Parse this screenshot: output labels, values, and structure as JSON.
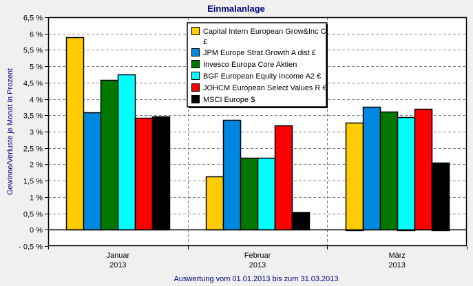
{
  "chart_data": {
    "type": "bar",
    "title": "Einmalanlage",
    "xlabel": "Auswertung vom 01.01.2013 bis zum 31.03.2013",
    "ylabel": "Gewinne/Verluste je Monat in Prozent",
    "ylim": [
      -0.5,
      6.5
    ],
    "yticks": [
      -0.5,
      0,
      0.5,
      1,
      1.5,
      2,
      2.5,
      3,
      3.5,
      4,
      4.5,
      5,
      5.5,
      6,
      6.5
    ],
    "ytick_labels": [
      "- 0,5 %",
      "0 %",
      "0,5 %",
      "1 %",
      "1,5 %",
      "2 %",
      "2,5 %",
      "3 %",
      "3,5 %",
      "4 %",
      "4,5 %",
      "5 %",
      "5,5 %",
      "6 %",
      "6,5 %"
    ],
    "grid": true,
    "legend_position": "top-center",
    "categories": [
      {
        "month": "Januar",
        "year": "2013"
      },
      {
        "month": "Februar",
        "year": "2013"
      },
      {
        "month": "März",
        "year": "2013"
      }
    ],
    "series": [
      {
        "name": "Capital Intern European Grow&Inc C £",
        "legend_lines": [
          "Capital Intern European Grow&Inc C",
          "£"
        ],
        "color": "#ffcc00",
        "values": [
          5.88,
          1.63,
          3.28
        ]
      },
      {
        "name": "JPM Europe Strat.Growth A dist £",
        "legend_lines": [
          "JPM Europe Strat.Growth A dist £"
        ],
        "color": "#0088e0",
        "values": [
          3.58,
          3.35,
          3.75
        ]
      },
      {
        "name": "Invesco Europa Core Aktien",
        "legend_lines": [
          "Invesco Europa Core Aktien"
        ],
        "color": "#007800",
        "values": [
          4.58,
          2.2,
          3.61
        ]
      },
      {
        "name": "BGF European Equity Income A2 €",
        "legend_lines": [
          "BGF European Equity Income A2 €"
        ],
        "color": "#00ffff",
        "values": [
          4.74,
          2.2,
          3.45
        ]
      },
      {
        "name": "JOHCM European Select Values R €",
        "legend_lines": [
          "JOHCM European Select Values R €"
        ],
        "color": "#ff0000",
        "values": [
          3.42,
          3.19,
          3.69
        ]
      },
      {
        "name": "MSCI Europe $",
        "legend_lines": [
          "MSCI Europe $"
        ],
        "color": "#000000",
        "values": [
          3.46,
          0.53,
          2.06
        ]
      }
    ]
  }
}
